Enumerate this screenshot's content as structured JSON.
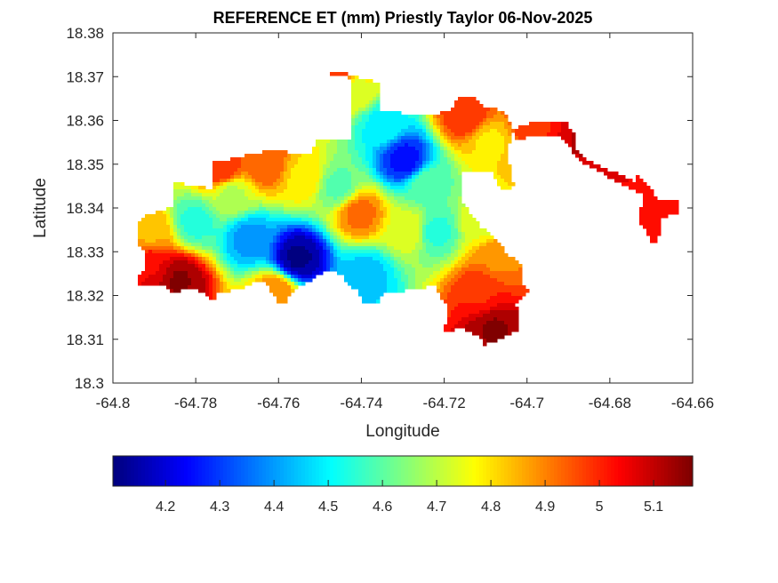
{
  "chart_data": {
    "type": "heatmap",
    "title": "REFERENCE ET (mm) Priestly Taylor 06-Nov-2025",
    "xlabel": "Longitude",
    "ylabel": "Latitude",
    "xlim": [
      -64.8,
      -64.66
    ],
    "ylim": [
      18.3,
      18.38
    ],
    "xticks": [
      "-64.8",
      "-64.78",
      "-64.76",
      "-64.74",
      "-64.72",
      "-64.7",
      "-64.68",
      "-64.66"
    ],
    "xtick_values": [
      -64.8,
      -64.78,
      -64.76,
      -64.74,
      -64.72,
      -64.7,
      -64.68,
      -64.66
    ],
    "yticks": [
      "18.3",
      "18.31",
      "18.32",
      "18.33",
      "18.34",
      "18.35",
      "18.36",
      "18.37",
      "18.38"
    ],
    "ytick_values": [
      18.3,
      18.31,
      18.32,
      18.33,
      18.34,
      18.35,
      18.36,
      18.37,
      18.38
    ],
    "colormap": "jet",
    "colorbar": {
      "location": "bottom",
      "clim": [
        4.103,
        5.172
      ],
      "ticks": [
        "4.2",
        "4.3",
        "4.4",
        "4.5",
        "4.6",
        "4.7",
        "4.8",
        "4.9",
        "5",
        "5.1"
      ],
      "tick_values": [
        4.2,
        4.3,
        4.4,
        4.5,
        4.6,
        4.7,
        4.8,
        4.9,
        5.0,
        5.1
      ]
    },
    "samples": [
      {
        "lon": -64.7553,
        "lat": 18.3286,
        "value": 4.12
      },
      {
        "lon": -64.7296,
        "lat": 18.351,
        "value": 4.25
      },
      {
        "lon": -64.735,
        "lat": 18.359,
        "value": 4.5
      },
      {
        "lon": -64.767,
        "lat": 18.333,
        "value": 4.4
      },
      {
        "lon": -64.739,
        "lat": 18.3246,
        "value": 4.45
      },
      {
        "lon": -64.722,
        "lat": 18.3347,
        "value": 4.55
      },
      {
        "lon": -64.78,
        "lat": 18.3368,
        "value": 4.55
      },
      {
        "lon": -64.7403,
        "lat": 18.3388,
        "value": 4.92
      },
      {
        "lon": -64.754,
        "lat": 18.347,
        "value": 4.8
      },
      {
        "lon": -64.763,
        "lat": 18.35,
        "value": 4.95
      },
      {
        "lon": -64.774,
        "lat": 18.349,
        "value": 5.0
      },
      {
        "lon": -64.784,
        "lat": 18.3235,
        "value": 5.15
      },
      {
        "lon": -64.791,
        "lat": 18.3266,
        "value": 5.05
      },
      {
        "lon": -64.791,
        "lat": 18.3347,
        "value": 4.85
      },
      {
        "lon": -64.708,
        "lat": 18.3124,
        "value": 5.15
      },
      {
        "lon": -64.7113,
        "lat": 18.3205,
        "value": 5.0
      },
      {
        "lon": -64.707,
        "lat": 18.3286,
        "value": 4.9
      },
      {
        "lon": -64.711,
        "lat": 18.3367,
        "value": 4.75
      },
      {
        "lon": -64.7146,
        "lat": 18.3611,
        "value": 5.0
      },
      {
        "lon": -64.709,
        "lat": 18.355,
        "value": 4.8
      },
      {
        "lon": -64.7414,
        "lat": 18.367,
        "value": 4.75
      },
      {
        "lon": -64.746,
        "lat": 18.37,
        "value": 5.0
      },
      {
        "lon": -64.698,
        "lat": 18.358,
        "value": 5.0
      },
      {
        "lon": -64.687,
        "lat": 18.355,
        "value": 5.1
      },
      {
        "lon": -64.6695,
        "lat": 18.3408,
        "value": 5.05
      },
      {
        "lon": -64.7285,
        "lat": 18.335,
        "value": 4.75
      },
      {
        "lon": -64.724,
        "lat": 18.345,
        "value": 4.6
      },
      {
        "lon": -64.7607,
        "lat": 18.3205,
        "value": 4.9
      },
      {
        "lon": -64.7715,
        "lat": 18.3428,
        "value": 4.7
      },
      {
        "lon": -64.7457,
        "lat": 18.345,
        "value": 4.6
      }
    ]
  }
}
